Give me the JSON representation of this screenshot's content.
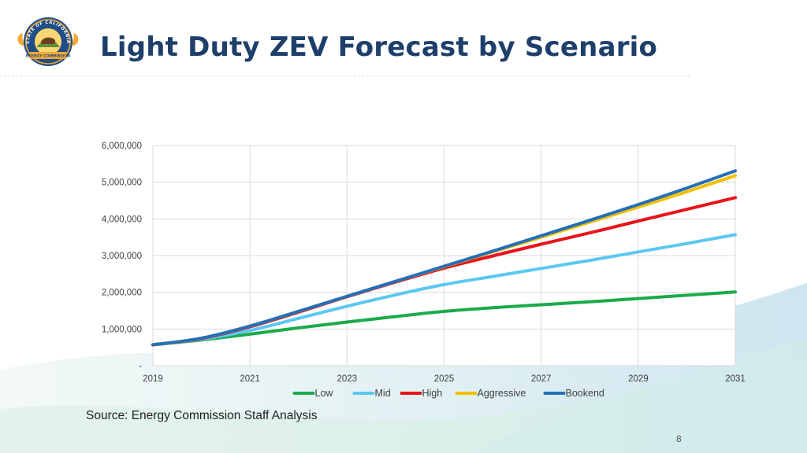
{
  "slide": {
    "title": "Light Duty ZEV Forecast by Scenario",
    "source": "Source: Energy Commission Staff Analysis",
    "page_number": "8"
  },
  "seal": {
    "top_text": "STATE OF CALIFORNIA",
    "bottom_text": "ENERGY COMMISSION",
    "icon": "california-energy-commission-seal-icon"
  },
  "colors": {
    "title": "#1e3f6b",
    "Low": "#1aab4b",
    "Mid": "#5bc8f0",
    "High": "#e8141b",
    "Aggressive": "#f5c000",
    "Bookend": "#2470b7"
  },
  "chart_data": {
    "type": "line",
    "title": "",
    "xlabel": "",
    "ylabel": "",
    "x": [
      2019,
      2020,
      2021,
      2022,
      2023,
      2024,
      2025,
      2026,
      2027,
      2028,
      2029,
      2030,
      2031
    ],
    "xticks": [
      "2019",
      "2021",
      "2023",
      "2025",
      "2027",
      "2029",
      "2031"
    ],
    "yticks": [
      "-",
      "1,000,000",
      "2,000,000",
      "3,000,000",
      "4,000,000",
      "5,000,000",
      "6,000,000"
    ],
    "ylim": [
      0,
      6000000
    ],
    "xlim": [
      2019,
      2031
    ],
    "grid": true,
    "legend_position": "bottom",
    "series": [
      {
        "name": "Low",
        "values": [
          570000,
          700000,
          860000,
          1030000,
          1190000,
          1340000,
          1480000,
          1580000,
          1660000,
          1740000,
          1830000,
          1920000,
          2010000
        ]
      },
      {
        "name": "Mid",
        "values": [
          570000,
          720000,
          960000,
          1290000,
          1620000,
          1930000,
          2210000,
          2430000,
          2650000,
          2870000,
          3100000,
          3330000,
          3570000
        ]
      },
      {
        "name": "High",
        "values": [
          570000,
          740000,
          1060000,
          1460000,
          1880000,
          2280000,
          2660000,
          2990000,
          3310000,
          3620000,
          3940000,
          4260000,
          4580000
        ]
      },
      {
        "name": "Aggressive",
        "values": [
          570000,
          750000,
          1080000,
          1480000,
          1890000,
          2300000,
          2700000,
          3100000,
          3500000,
          3910000,
          4320000,
          4740000,
          5180000
        ]
      },
      {
        "name": "Bookend",
        "values": [
          570000,
          750000,
          1080000,
          1480000,
          1890000,
          2300000,
          2710000,
          3120000,
          3540000,
          3960000,
          4390000,
          4840000,
          5310000
        ]
      }
    ]
  }
}
